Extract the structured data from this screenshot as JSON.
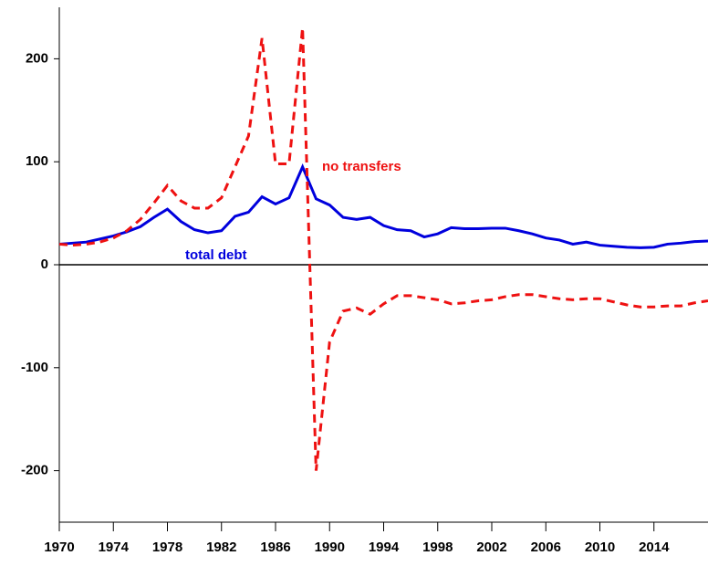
{
  "chart_data": {
    "type": "line",
    "x": [
      1970,
      1971,
      1972,
      1973,
      1974,
      1975,
      1976,
      1977,
      1978,
      1979,
      1980,
      1981,
      1982,
      1983,
      1984,
      1985,
      1986,
      1987,
      1988,
      1989,
      1990,
      1991,
      1992,
      1993,
      1994,
      1995,
      1996,
      1997,
      1998,
      1999,
      2000,
      2001,
      2002,
      2003,
      2004,
      2005,
      2006,
      2007,
      2008,
      2009,
      2010,
      2011,
      2012,
      2013,
      2014,
      2015,
      2016,
      2017,
      2018
    ],
    "series": [
      {
        "name": "total debt",
        "color": "#0000dd",
        "dash": false,
        "values": [
          20,
          21,
          22,
          25,
          28,
          32,
          37,
          46,
          54,
          42,
          34,
          31,
          33,
          47,
          51,
          66,
          59,
          65,
          95,
          64,
          58,
          46,
          44,
          46,
          38,
          34,
          33,
          27,
          30,
          36,
          35,
          35,
          35.5,
          35.5,
          33,
          30,
          26,
          24,
          20,
          22,
          19,
          18,
          17,
          16.5,
          17,
          20,
          21,
          22.5,
          23
        ]
      },
      {
        "name": "no transfers",
        "color": "#ee1111",
        "dash": true,
        "values": [
          20,
          19,
          20,
          22,
          26,
          33,
          44,
          60,
          77,
          62,
          55,
          55,
          65,
          95,
          125,
          220,
          98,
          98,
          230,
          -200,
          -75,
          -45,
          -42,
          -48,
          -38,
          -30,
          -30,
          -32,
          -34,
          -38,
          -37,
          -35,
          -34,
          -31,
          -29,
          -29,
          -31,
          -33,
          -34,
          -33,
          -33,
          -36,
          -39,
          -41,
          -41,
          -40,
          -40,
          -37,
          -35
        ]
      }
    ],
    "xlim": [
      1970,
      2018
    ],
    "xticks": [
      1970,
      1974,
      1978,
      1982,
      1986,
      1990,
      1994,
      1998,
      2002,
      2006,
      2010,
      2014
    ],
    "ylim": [
      -250,
      250
    ],
    "yticks": [
      -200,
      -100,
      0,
      100,
      200
    ],
    "zero_line": true
  }
}
